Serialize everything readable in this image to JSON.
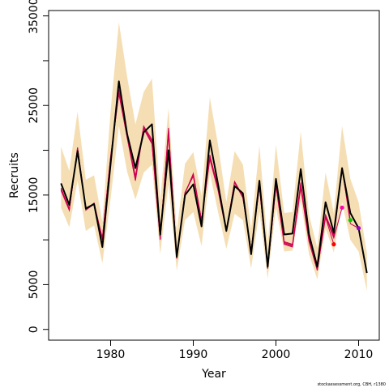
{
  "chart_data": {
    "type": "line",
    "title": "",
    "xlabel": "Year",
    "ylabel": "Recruits",
    "xlim": [
      1972.5,
      2012.5
    ],
    "ylim": [
      -1200,
      35600
    ],
    "x_ticks": [
      1980,
      1990,
      2000,
      2010
    ],
    "x_tick_labels": [
      "1980",
      "1990",
      "2000",
      "2010"
    ],
    "y_ticks": [
      0,
      5000,
      15000,
      25000,
      35000
    ],
    "y_tick_labels": [
      "0",
      "5000",
      "15000",
      "25000",
      "35000"
    ],
    "y_minor_ticks": [
      10000,
      20000,
      30000
    ],
    "grid": false,
    "legend": "none",
    "credit": "stockassessment.org, CBH, r1380",
    "colors": {
      "band": "#f5deb3",
      "main": "#000000",
      "retro": "#cd0050",
      "axis": "#000000"
    },
    "years": [
      1974,
      1975,
      1976,
      1977,
      1978,
      1979,
      1980,
      1981,
      1982,
      1983,
      1984,
      1985,
      1986,
      1987,
      1988,
      1989,
      1990,
      1991,
      1992,
      1993,
      1994,
      1995,
      1996,
      1997,
      1998,
      1999,
      2000,
      2001,
      2002,
      2003,
      2004,
      2005,
      2006,
      2007,
      2008,
      2009,
      2010,
      2011
    ],
    "series": [
      {
        "values": [
          16300,
          13900,
          19900,
          13500,
          14000,
          9200,
          18500,
          27700,
          21800,
          18000,
          22000,
          22900,
          10600,
          20000,
          8100,
          15000,
          16200,
          11500,
          21100,
          16200,
          11000,
          16000,
          15200,
          8400,
          16600,
          7000,
          16800,
          10600,
          10700,
          17900,
          10600,
          7000,
          14200,
          10800,
          18000,
          13000,
          11300,
          6300
        ]
      }
    ],
    "band": {
      "upper": [
        20400,
        17700,
        24300,
        16700,
        17200,
        12000,
        24400,
        34300,
        28200,
        22900,
        26500,
        28000,
        14400,
        24700,
        11000,
        18500,
        19800,
        14900,
        25900,
        20600,
        14200,
        19900,
        18400,
        11200,
        20500,
        9500,
        20600,
        13000,
        13100,
        22100,
        12800,
        9100,
        17500,
        13000,
        22700,
        16800,
        14200,
        8500
      ],
      "lower": [
        13600,
        11400,
        16600,
        11000,
        11600,
        7400,
        14600,
        22700,
        17600,
        14500,
        17500,
        18400,
        8400,
        16200,
        6600,
        12200,
        13100,
        9300,
        17500,
        13100,
        9000,
        12900,
        12200,
        6800,
        13200,
        5700,
        13600,
        8700,
        8800,
        14400,
        8400,
        5600,
        11300,
        8600,
        14200,
        10000,
        8700,
        4300
      ]
    },
    "retro_series": [
      {
        "end_year": 2010,
        "values": [
          15800,
          13500,
          20100,
          13400,
          14100,
          10000,
          19000,
          26800,
          21700,
          17100,
          22700,
          21200,
          10300,
          21700,
          8000,
          15300,
          17100,
          12000,
          19500,
          15800,
          11000,
          16500,
          14900,
          8700,
          16200,
          6900,
          16300,
          9800,
          9500,
          16400,
          10100,
          6800,
          12800,
          10500,
          18100,
          11800,
          11300
        ]
      },
      {
        "end_year": 2009,
        "values": [
          15700,
          13400,
          20200,
          13400,
          14100,
          10100,
          19100,
          26600,
          21600,
          16900,
          22600,
          21000,
          10200,
          22000,
          8000,
          15300,
          17200,
          12100,
          19300,
          15700,
          11000,
          16500,
          14800,
          8800,
          16100,
          6900,
          16200,
          9700,
          9400,
          16100,
          10000,
          6700,
          12700,
          10300,
          17900,
          12200
        ]
      },
      {
        "end_year": 2008,
        "values": [
          15600,
          13300,
          20300,
          13400,
          14000,
          10200,
          19200,
          26400,
          21500,
          16700,
          22500,
          20800,
          10100,
          22300,
          7900,
          15200,
          17300,
          12200,
          19100,
          15600,
          11000,
          16400,
          14700,
          8800,
          16000,
          6800,
          16100,
          9600,
          9300,
          15900,
          9900,
          6600,
          12600,
          10200,
          13600
        ]
      },
      {
        "end_year": 2007,
        "values": [
          15500,
          13300,
          20300,
          13300,
          14000,
          10200,
          19300,
          26300,
          21400,
          16600,
          22400,
          20700,
          10000,
          22500,
          7900,
          15200,
          17400,
          12200,
          19000,
          15500,
          10900,
          16400,
          14700,
          8800,
          15900,
          6800,
          16000,
          9500,
          9200,
          15800,
          9800,
          6600,
          12500,
          9500
        ]
      }
    ],
    "terminal_points": [
      {
        "year": 2007,
        "value": 9500,
        "color": "#ff0000"
      },
      {
        "year": 2008,
        "value": 13600,
        "color": "#ff00aa"
      },
      {
        "year": 2009,
        "value": 12200,
        "color": "#00cc00"
      },
      {
        "year": 2010,
        "value": 11300,
        "color": "#9900cc"
      }
    ]
  }
}
